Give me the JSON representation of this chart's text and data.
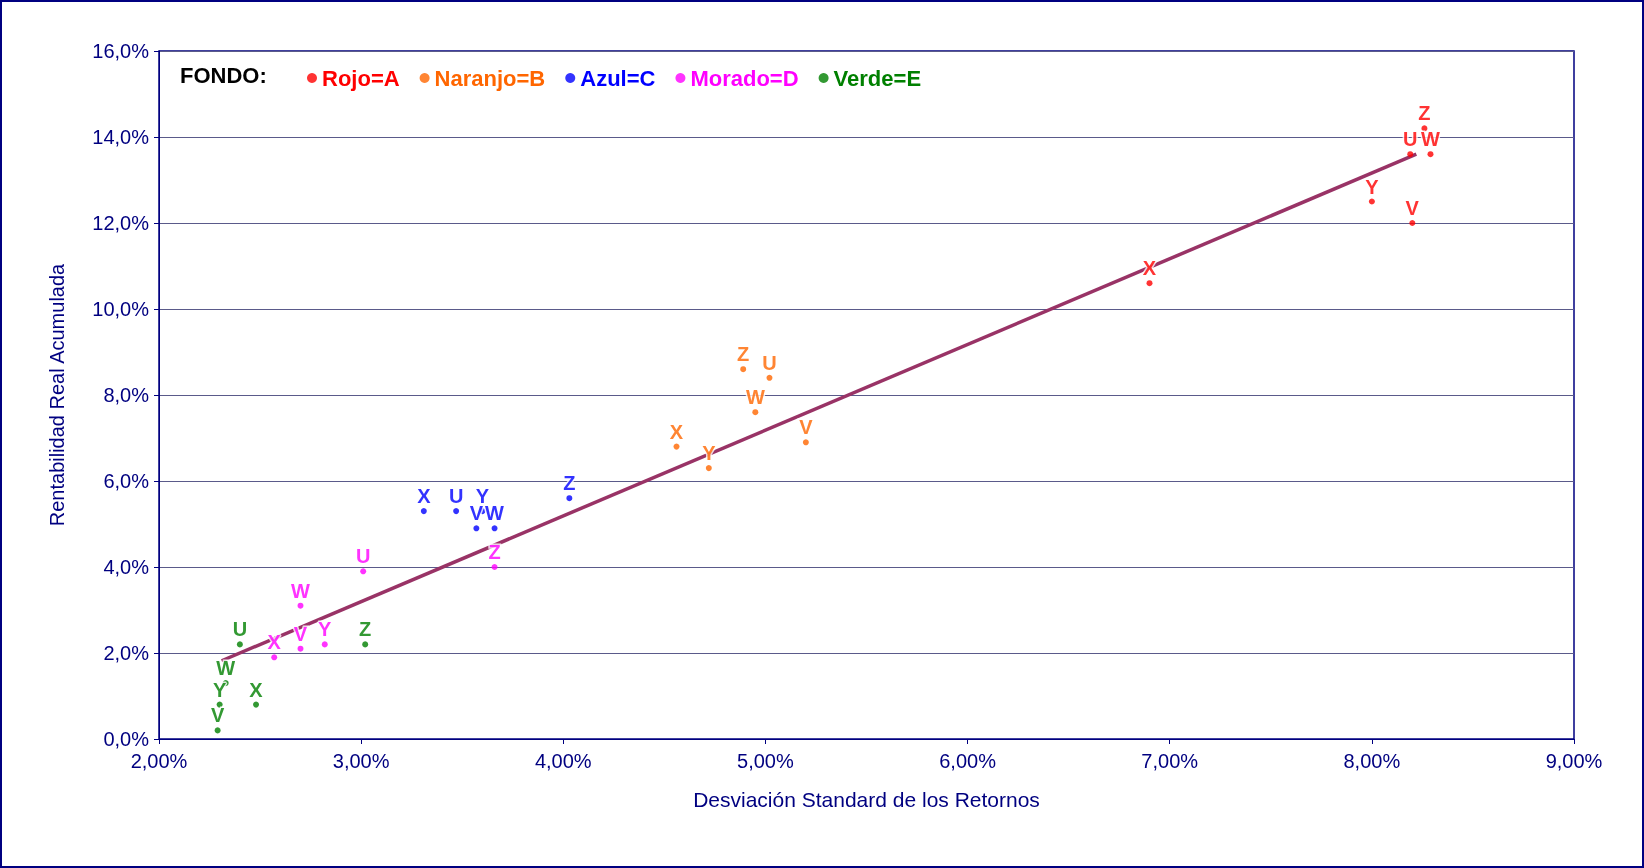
{
  "chart_data": {
    "type": "scatter",
    "xlabel": "Desviación Standard de los Retornos",
    "ylabel": "Rentabilidad Real Acumulada",
    "legend_title": "FONDO:",
    "legend": "top left",
    "grid": "y",
    "xlim": [
      2,
      9
    ],
    "xticks": [
      {
        "value": 2,
        "label": "2,00%"
      },
      {
        "value": 3,
        "label": "3,00%"
      },
      {
        "value": 4,
        "label": "4,00%"
      },
      {
        "value": 5,
        "label": "5,00%"
      },
      {
        "value": 6,
        "label": "6,00%"
      },
      {
        "value": 7,
        "label": "7,00%"
      },
      {
        "value": 8,
        "label": "8,00%"
      },
      {
        "value": 9,
        "label": "9,00%"
      }
    ],
    "ylim": [
      0,
      16
    ],
    "yticks": [
      {
        "value": 0,
        "label": "0,0%"
      },
      {
        "value": 2,
        "label": "2,0%"
      },
      {
        "value": 4,
        "label": "4,0%"
      },
      {
        "value": 6,
        "label": "6,0%"
      },
      {
        "value": 8,
        "label": "8,0%"
      },
      {
        "value": 10,
        "label": "10,0%"
      },
      {
        "value": 12,
        "label": "12,0%"
      },
      {
        "value": 14,
        "label": "14,0%"
      },
      {
        "value": 16,
        "label": "16,0%"
      }
    ],
    "series": [
      {
        "name": "Rojo=A",
        "color": "#ff0000",
        "marker": "circle",
        "x": [
          8.19,
          8.2,
          8.29,
          6.9,
          8.0,
          8.26
        ],
        "values": [
          13.6,
          12.0,
          13.6,
          10.6,
          12.5,
          14.2
        ],
        "value_labels": [
          "U",
          "V",
          "W",
          "X",
          "Y",
          "Z"
        ]
      },
      {
        "name": "Naranjo=B",
        "color": "#ff6600",
        "marker": "circle",
        "x": [
          5.02,
          5.2,
          4.95,
          4.56,
          4.72,
          4.89
        ],
        "values": [
          8.4,
          6.9,
          7.6,
          6.8,
          6.3,
          8.6
        ],
        "value_labels": [
          "U",
          "V",
          "W",
          "X",
          "Y",
          "Z"
        ]
      },
      {
        "name": "Azul=C",
        "color": "#0000ff",
        "marker": "circle",
        "x": [
          3.47,
          3.57,
          3.66,
          3.31,
          3.6,
          4.03
        ],
        "values": [
          5.3,
          4.9,
          4.9,
          5.3,
          5.3,
          5.6
        ],
        "value_labels": [
          "U",
          "V",
          "W",
          "X",
          "Y",
          "Z"
        ]
      },
      {
        "name": "Morado=D",
        "color": "#ff00ff",
        "marker": "circle",
        "x": [
          3.01,
          2.7,
          2.7,
          2.57,
          2.82,
          3.66
        ],
        "values": [
          3.9,
          2.1,
          3.1,
          1.9,
          2.2,
          4.0
        ],
        "value_labels": [
          "U",
          "V",
          "W",
          "X",
          "Y",
          "Z"
        ]
      },
      {
        "name": "Verde=E",
        "color": "#008000",
        "marker": "circle",
        "x": [
          2.4,
          2.29,
          2.33,
          2.48,
          2.3,
          3.02
        ],
        "values": [
          2.2,
          0.2,
          1.3,
          0.8,
          0.8,
          2.2
        ],
        "value_labels": [
          "U",
          "V",
          "W",
          "X",
          "Y",
          "Z"
        ]
      },
      {
        "type": "line",
        "color": "#993366",
        "x": [
          2.31,
          8.22
        ],
        "values": [
          1.82,
          13.6
        ]
      }
    ]
  }
}
